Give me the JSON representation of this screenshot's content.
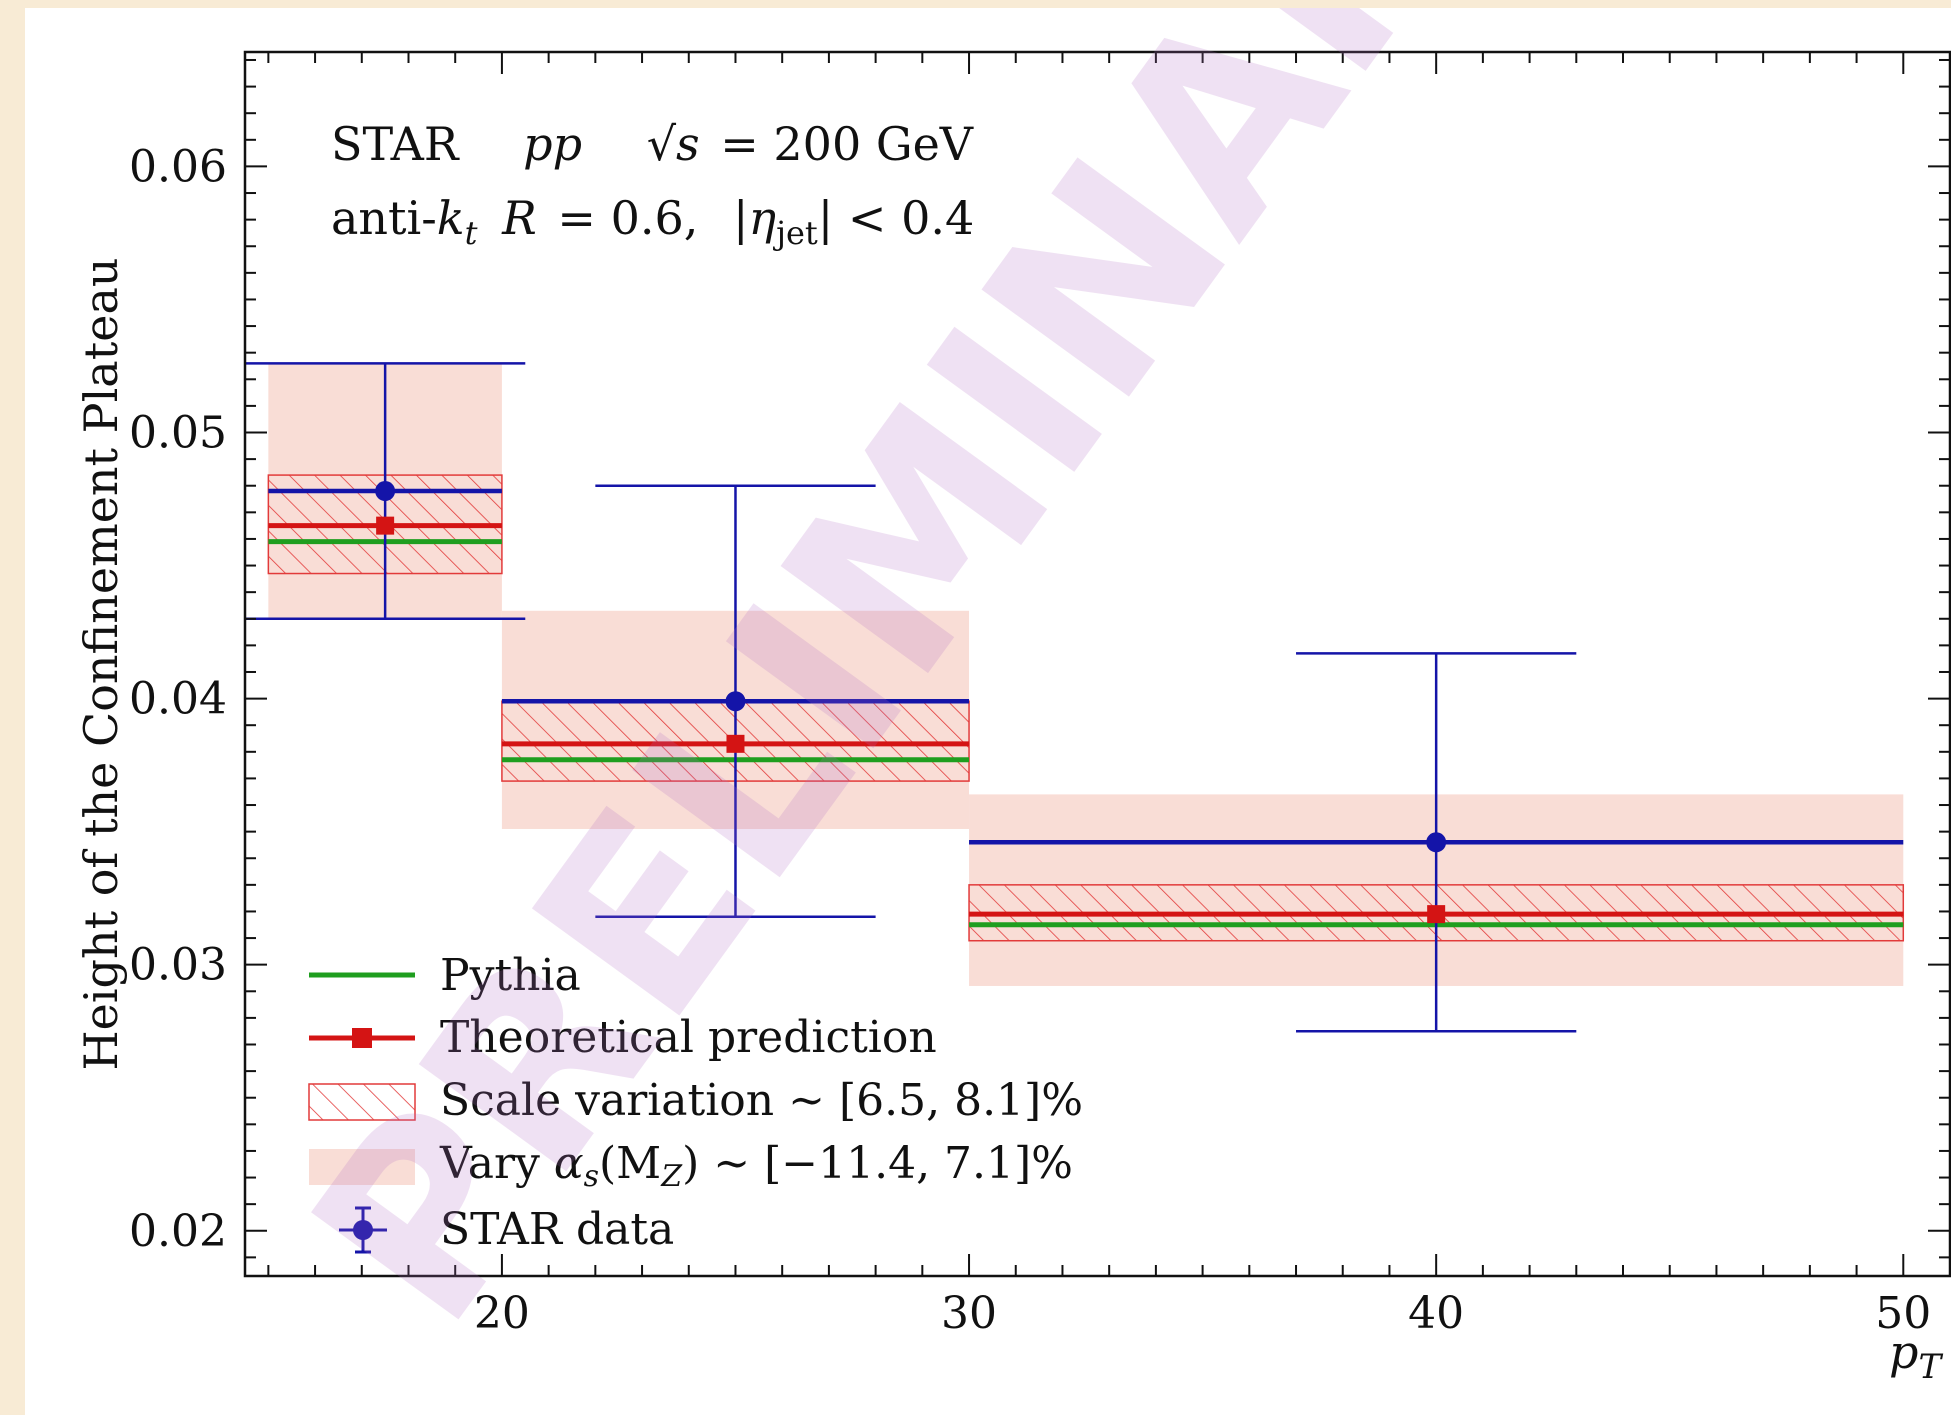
{
  "chart_data": {
    "type": "line",
    "ylabel": "Height of the Confinement Plateau",
    "xlabel": "p",
    "xlabel_sub": "T",
    "xlim": [
      14.5,
      51.0
    ],
    "ylim": [
      0.0183,
      0.0643
    ],
    "xticks": [
      20,
      30,
      40,
      50
    ],
    "yticks": [
      0.02,
      0.03,
      0.04,
      0.05,
      0.06
    ],
    "ytick_labels": [
      "0.02",
      "0.03",
      "0.04",
      "0.05",
      "0.06"
    ],
    "xtick_labels": [
      "20",
      "30",
      "40",
      "50"
    ],
    "annotation_line1": {
      "experiment": "STAR",
      "system": "pp",
      "sqrt": "√",
      "s": "s",
      "energy": "= 200 GeV"
    },
    "annotation_line2": {
      "alg_prefix": "anti-",
      "k": "k",
      "k_sub": "t",
      "R": "R",
      "R_val": "= 0.6,",
      "eta_open": "|",
      "eta": "η",
      "eta_sub": "jet",
      "eta_close": "| < 0.4"
    },
    "bins": [
      {
        "lo": 15,
        "hi": 20,
        "center": 17.5,
        "pythia": 0.0459,
        "theory": 0.0465,
        "scale_lo": 0.0447,
        "scale_hi": 0.0484,
        "alpha_lo": 0.043,
        "alpha_hi": 0.0526,
        "data": 0.0478,
        "data_err_lo": 0.043,
        "data_err_hi": 0.0526,
        "data_xerr": [
          15,
          20
        ]
      },
      {
        "lo": 20,
        "hi": 30,
        "center": 25,
        "pythia": 0.0377,
        "theory": 0.0383,
        "scale_lo": 0.0369,
        "scale_hi": 0.0399,
        "alpha_lo": 0.0351,
        "alpha_hi": 0.0433,
        "data": 0.0399,
        "data_err_lo": 0.0318,
        "data_err_hi": 0.048,
        "data_xerr": [
          20,
          30
        ]
      },
      {
        "lo": 30,
        "hi": 50,
        "center": 40,
        "pythia": 0.0315,
        "theory": 0.0319,
        "scale_lo": 0.0309,
        "scale_hi": 0.033,
        "alpha_lo": 0.0292,
        "alpha_hi": 0.0364,
        "data": 0.0346,
        "data_err_lo": 0.0275,
        "data_err_hi": 0.0417,
        "data_xerr": [
          30,
          50
        ]
      }
    ],
    "errorbar_cap_halfwidth": 3.0,
    "legend": {
      "placement": "lower-left",
      "pythia": "Pythia",
      "theory": "Theoretical prediction",
      "scale": "Scale variation ~ [6.5, 8.1]%",
      "alpha_prefix": "Vary ",
      "alpha_symbol": "α",
      "alpha_sub": "s",
      "alpha_arg": "(M",
      "alpha_arg_sub": "Z",
      "alpha_suffix": ") ~ [−11.4, 7.1]%",
      "data": "STAR data"
    },
    "colors": {
      "pythia": "#1f9e1f",
      "theory": "#d41414",
      "scale_hatch": "#e23a3a",
      "alpha_band": "#f9ddd6",
      "data": "#1414a8"
    },
    "watermark": "PRELIMINARY"
  }
}
